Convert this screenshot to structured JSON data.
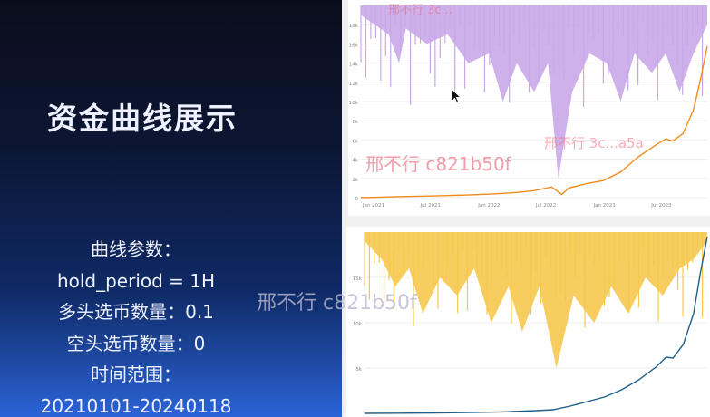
{
  "slide": {
    "title": "资金曲线展示",
    "params": [
      "曲线参数：",
      "hold_period = 1H",
      "多头选币数量：0.1",
      "空头选币数量：0",
      "时间范围：",
      "20210101-20240118"
    ]
  },
  "watermarks": [
    "邢不行 c821b50f",
    "邢不行 3c...a5a",
    "邢不行 3c...",
    "邢不行 c821b50f"
  ],
  "cursor_icon": "arrow-cursor-icon",
  "chart_data": [
    {
      "type": "area",
      "y_ticks": [
        "0",
        "2k",
        "4k",
        "6k",
        "8k",
        "10k",
        "12k",
        "14k",
        "16k",
        "18k"
      ],
      "x_ticks": [
        "Jan 2021",
        "Jul 2021",
        "Jan 2022",
        "Jul 2022",
        "Jan 2023",
        "Jul 2023"
      ],
      "ylim": [
        0,
        18000
      ],
      "series": [
        {
          "color": "#f08c1c",
          "points": [
            [
              0,
              0
            ],
            [
              0.05,
              40
            ],
            [
              0.1,
              90
            ],
            [
              0.15,
              120
            ],
            [
              0.2,
              150
            ],
            [
              0.25,
              200
            ],
            [
              0.3,
              240
            ],
            [
              0.35,
              300
            ],
            [
              0.4,
              380
            ],
            [
              0.45,
              480
            ],
            [
              0.5,
              650
            ],
            [
              0.55,
              1000
            ],
            [
              0.58,
              300
            ],
            [
              0.6,
              900
            ],
            [
              0.65,
              1300
            ],
            [
              0.7,
              1600
            ],
            [
              0.75,
              2400
            ],
            [
              0.8,
              3800
            ],
            [
              0.85,
              4900
            ],
            [
              0.88,
              5500
            ],
            [
              0.9,
              5300
            ],
            [
              0.93,
              6000
            ],
            [
              0.96,
              8200
            ],
            [
              0.98,
              11000
            ],
            [
              1.0,
              14200
            ]
          ]
        },
        {
          "color": "#c9a7e8",
          "drawdown": [
            [
              0,
              0.05
            ],
            [
              0.04,
              0.1
            ],
            [
              0.08,
              0.15
            ],
            [
              0.11,
              0.3
            ],
            [
              0.13,
              0.12
            ],
            [
              0.19,
              0.2
            ],
            [
              0.25,
              0.15
            ],
            [
              0.31,
              0.3
            ],
            [
              0.37,
              0.25
            ],
            [
              0.41,
              0.5
            ],
            [
              0.45,
              0.3
            ],
            [
              0.5,
              0.45
            ],
            [
              0.54,
              0.3
            ],
            [
              0.57,
              0.9
            ],
            [
              0.61,
              0.45
            ],
            [
              0.66,
              0.25
            ],
            [
              0.71,
              0.3
            ],
            [
              0.75,
              0.5
            ],
            [
              0.79,
              0.25
            ],
            [
              0.84,
              0.35
            ],
            [
              0.88,
              0.25
            ],
            [
              0.92,
              0.45
            ],
            [
              0.96,
              0.25
            ],
            [
              1.0,
              0.1
            ]
          ]
        }
      ]
    },
    {
      "type": "area",
      "y_ticks": [
        "5k",
        "10k",
        "15k"
      ],
      "ylim": [
        0,
        20000
      ],
      "series": [
        {
          "color": "#1f5f8b",
          "points": [
            [
              0,
              0
            ],
            [
              0.1,
              20
            ],
            [
              0.2,
              50
            ],
            [
              0.3,
              90
            ],
            [
              0.4,
              160
            ],
            [
              0.5,
              300
            ],
            [
              0.55,
              400
            ],
            [
              0.6,
              800
            ],
            [
              0.65,
              1300
            ],
            [
              0.7,
              1800
            ],
            [
              0.75,
              2600
            ],
            [
              0.8,
              3700
            ],
            [
              0.85,
              5100
            ],
            [
              0.88,
              6200
            ],
            [
              0.9,
              6100
            ],
            [
              0.93,
              7600
            ],
            [
              0.96,
              11000
            ],
            [
              0.98,
              15500
            ],
            [
              1.0,
              19500
            ]
          ]
        },
        {
          "color": "#f5c84c",
          "drawdown": [
            [
              0,
              0.05
            ],
            [
              0.05,
              0.15
            ],
            [
              0.09,
              0.3
            ],
            [
              0.13,
              0.2
            ],
            [
              0.17,
              0.45
            ],
            [
              0.22,
              0.25
            ],
            [
              0.27,
              0.35
            ],
            [
              0.32,
              0.2
            ],
            [
              0.37,
              0.5
            ],
            [
              0.42,
              0.3
            ],
            [
              0.46,
              0.55
            ],
            [
              0.51,
              0.3
            ],
            [
              0.56,
              0.75
            ],
            [
              0.61,
              0.35
            ],
            [
              0.67,
              0.5
            ],
            [
              0.72,
              0.3
            ],
            [
              0.77,
              0.45
            ],
            [
              0.82,
              0.25
            ],
            [
              0.87,
              0.35
            ],
            [
              0.92,
              0.2
            ],
            [
              0.96,
              0.15
            ],
            [
              1.0,
              0.05
            ]
          ]
        }
      ]
    }
  ]
}
